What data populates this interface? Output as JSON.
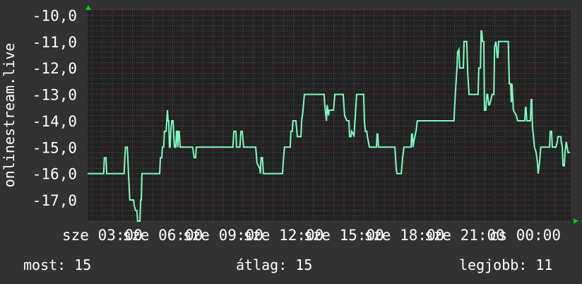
{
  "chart_data": {
    "type": "line",
    "ylabel": "onlinestream.live",
    "xlabel": "",
    "xlim": [
      "sze 02:16",
      "cs 02:16"
    ],
    "ylim": [
      -17.8,
      -9.8
    ],
    "grid": true,
    "y_ticks": [
      "-10,0",
      "-11,0",
      "-12,0",
      "-13,0",
      "-14,0",
      "-15,0",
      "-16,0",
      "-17,0"
    ],
    "y_tick_values": [
      -10,
      -11,
      -12,
      -13,
      -14,
      -15,
      -16,
      -17
    ],
    "x_ticks": [
      {
        "label": "sze 03:00",
        "time": "03:00"
      },
      {
        "label": "sze 06:00",
        "time": "06:00"
      },
      {
        "label": "sze 09:00",
        "time": "09:00"
      },
      {
        "label": "sze 12:00",
        "time": "12:00"
      },
      {
        "label": "sze 15:00",
        "time": "15:00"
      },
      {
        "label": "sze 18:00",
        "time": "18:00"
      },
      {
        "label": "sze 21:00",
        "time": "21:00"
      },
      {
        "label": "cs 00:00",
        "time": "24:00"
      }
    ],
    "colors": {
      "background": "#323232",
      "plot": "#222222",
      "line": "#7dfcc0",
      "major_grid": "#8a3a3a",
      "minor_grid": "#5a5a5a",
      "arrow": "#00cc00"
    },
    "series": [
      {
        "points": [
          [
            "02:16",
            -16
          ],
          [
            "03:04",
            -16
          ],
          [
            "03:06",
            -15.4
          ],
          [
            "03:11",
            -15.4
          ],
          [
            "03:13",
            -16
          ],
          [
            "04:05",
            -16
          ],
          [
            "04:07",
            -15.4
          ],
          [
            "04:09",
            -15
          ],
          [
            "04:14",
            -15
          ],
          [
            "04:16",
            -15.4
          ],
          [
            "04:18",
            -16
          ],
          [
            "04:22",
            -17
          ],
          [
            "04:33",
            -17
          ],
          [
            "04:35",
            -17.2
          ],
          [
            "04:39",
            -17.4
          ],
          [
            "04:43",
            -17.4
          ],
          [
            "04:45",
            -17.8
          ],
          [
            "04:52",
            -17.8
          ],
          [
            "04:54",
            -17
          ],
          [
            "04:56",
            -17
          ],
          [
            "04:58",
            -16
          ],
          [
            "05:51",
            -16
          ],
          [
            "05:53",
            -15.4
          ],
          [
            "05:57",
            -15.4
          ],
          [
            "05:59",
            -15
          ],
          [
            "06:03",
            -15
          ],
          [
            "06:05",
            -14.4
          ],
          [
            "06:10",
            -14.4
          ],
          [
            "06:14",
            -13.6
          ],
          [
            "06:16",
            -14
          ],
          [
            "06:18",
            -14
          ],
          [
            "06:20",
            -15
          ],
          [
            "06:22",
            -15
          ],
          [
            "06:24",
            -14.4
          ],
          [
            "06:27",
            -14
          ],
          [
            "06:31",
            -14
          ],
          [
            "06:33",
            -14.6
          ],
          [
            "06:35",
            -15
          ],
          [
            "06:39",
            -15
          ],
          [
            "06:41",
            -14.4
          ],
          [
            "06:43",
            -14.4
          ],
          [
            "06:45",
            -15
          ],
          [
            "06:47",
            -14.4
          ],
          [
            "06:49",
            -14.4
          ],
          [
            "06:52",
            -15
          ],
          [
            "07:29",
            -15
          ],
          [
            "07:34",
            -15.4
          ],
          [
            "07:38",
            -15.4
          ],
          [
            "07:40",
            -15
          ],
          [
            "09:29",
            -15
          ],
          [
            "09:32",
            -14.4
          ],
          [
            "09:38",
            -14.4
          ],
          [
            "09:40",
            -15
          ],
          [
            "09:50",
            -15
          ],
          [
            "09:53",
            -14.4
          ],
          [
            "09:57",
            -14.4
          ],
          [
            "10:01",
            -15
          ],
          [
            "10:37",
            -15
          ],
          [
            "10:41",
            -15.6
          ],
          [
            "10:45",
            -15.7
          ],
          [
            "10:49",
            -15.8
          ],
          [
            "10:51",
            -16
          ],
          [
            "10:53",
            -15.4
          ],
          [
            "10:57",
            -15.4
          ],
          [
            "11:00",
            -16
          ],
          [
            "11:57",
            -16
          ],
          [
            "11:59",
            -15.6
          ],
          [
            "12:03",
            -15
          ],
          [
            "12:20",
            -15
          ],
          [
            "12:22",
            -14.4
          ],
          [
            "12:26",
            -14.4
          ],
          [
            "12:28",
            -14
          ],
          [
            "12:37",
            -14
          ],
          [
            "12:41",
            -14.6
          ],
          [
            "12:52",
            -14.6
          ],
          [
            "12:54",
            -14
          ],
          [
            "12:58",
            -13.6
          ],
          [
            "13:02",
            -13
          ],
          [
            "14:01",
            -13
          ],
          [
            "14:03",
            -13.4
          ],
          [
            "14:08",
            -14
          ],
          [
            "14:10",
            -13.4
          ],
          [
            "14:14",
            -13.8
          ],
          [
            "14:16",
            -13.6
          ],
          [
            "14:29",
            -13.6
          ],
          [
            "14:33",
            -13
          ],
          [
            "14:58",
            -13
          ],
          [
            "15:02",
            -13.8
          ],
          [
            "15:09",
            -14
          ],
          [
            "15:15",
            -14
          ],
          [
            "15:17",
            -14.6
          ],
          [
            "15:21",
            -14.6
          ],
          [
            "15:23",
            -14.4
          ],
          [
            "15:28",
            -14.5
          ],
          [
            "15:30",
            -14.6
          ],
          [
            "15:34",
            -13.8
          ],
          [
            "15:38",
            -13
          ],
          [
            "15:59",
            -13
          ],
          [
            "16:01",
            -14
          ],
          [
            "16:04",
            -14.4
          ],
          [
            "16:08",
            -14.4
          ],
          [
            "16:10",
            -14.6
          ],
          [
            "16:16",
            -15
          ],
          [
            "16:37",
            -15
          ],
          [
            "16:39",
            -14.5
          ],
          [
            "16:41",
            -14.5
          ],
          [
            "16:43",
            -15
          ],
          [
            "17:32",
            -15
          ],
          [
            "17:36",
            -15.8
          ],
          [
            "17:38",
            -16
          ],
          [
            "17:51",
            -16
          ],
          [
            "17:55",
            -15.4
          ],
          [
            "17:59",
            -15
          ],
          [
            "18:20",
            -15
          ],
          [
            "18:22",
            -14.5
          ],
          [
            "18:24",
            -14.5
          ],
          [
            "18:26",
            -15
          ],
          [
            "18:28",
            -14.8
          ],
          [
            "18:35",
            -14.4
          ],
          [
            "18:39",
            -14
          ],
          [
            "20:28",
            -14
          ],
          [
            "20:32",
            -13
          ],
          [
            "20:37",
            -12
          ],
          [
            "20:39",
            -11.4
          ],
          [
            "20:43",
            -11.3
          ],
          [
            "20:45",
            -12
          ],
          [
            "20:56",
            -12
          ],
          [
            "20:58",
            -11
          ],
          [
            "21:06",
            -11
          ],
          [
            "21:09",
            -12.2
          ],
          [
            "21:13",
            -13
          ],
          [
            "21:40",
            -13
          ],
          [
            "21:42",
            -12
          ],
          [
            "21:47",
            -12
          ],
          [
            "21:49",
            -10.6
          ],
          [
            "21:51",
            -10.6
          ],
          [
            "21:53",
            -11
          ],
          [
            "21:57",
            -11
          ],
          [
            "21:59",
            -13.6
          ],
          [
            "22:03",
            -13.6
          ],
          [
            "22:06",
            -13
          ],
          [
            "22:08",
            -13
          ],
          [
            "22:12",
            -13.4
          ],
          [
            "22:14",
            -13.4
          ],
          [
            "22:18",
            -13.2
          ],
          [
            "22:22",
            -13
          ],
          [
            "22:27",
            -13
          ],
          [
            "22:29",
            -11.2
          ],
          [
            "22:33",
            -11
          ],
          [
            "22:37",
            -11.6
          ],
          [
            "22:39",
            -11.6
          ],
          [
            "22:41",
            -11
          ],
          [
            "23:10",
            -11
          ],
          [
            "23:13",
            -12.6
          ],
          [
            "23:17",
            -12.6
          ],
          [
            "23:19",
            -13.3
          ],
          [
            "23:21",
            -12.6
          ],
          [
            "23:25",
            -13.6
          ],
          [
            "23:34",
            -13.8
          ],
          [
            "23:38",
            -14
          ],
          [
            "23:59",
            -14
          ],
          [
            "00:01",
            -13.5
          ],
          [
            "00:03",
            -13.5
          ],
          [
            "00:05",
            -14
          ],
          [
            "00:16",
            -14
          ],
          [
            "00:18",
            -13.2
          ],
          [
            "00:20",
            -13.2
          ],
          [
            "00:22",
            -14.2
          ],
          [
            "00:28",
            -15
          ],
          [
            "00:33",
            -15.2
          ],
          [
            "00:37",
            -15.6
          ],
          [
            "00:39",
            -16
          ],
          [
            "00:43",
            -15.6
          ],
          [
            "00:47",
            -15
          ],
          [
            "01:13",
            -15
          ],
          [
            "01:15",
            -14.4
          ],
          [
            "01:19",
            -14.4
          ],
          [
            "01:21",
            -15
          ],
          [
            "01:32",
            -15
          ],
          [
            "01:36",
            -14.8
          ],
          [
            "01:38",
            -14.6
          ],
          [
            "01:46",
            -14.6
          ],
          [
            "01:48",
            -14.8
          ],
          [
            "01:51",
            -15
          ],
          [
            "01:53",
            -15.7
          ],
          [
            "01:57",
            -15.7
          ],
          [
            "01:59",
            -15.2
          ],
          [
            "02:03",
            -14.8
          ],
          [
            "02:08",
            -15.2
          ],
          [
            "02:14",
            -15.2
          ]
        ]
      }
    ]
  },
  "legend": {
    "current_label": "most: 15",
    "average_label": "átlag: 15",
    "max_label": "legjobb: 11"
  }
}
